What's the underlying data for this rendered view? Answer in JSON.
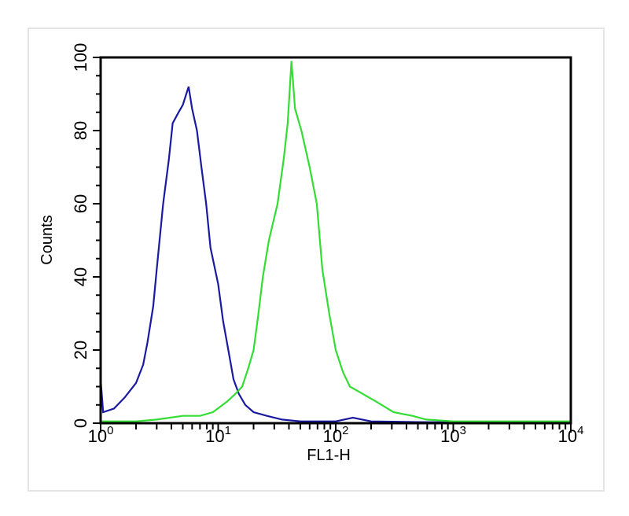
{
  "chart_data": {
    "type": "line",
    "title": "",
    "xlabel": "FL1-H",
    "ylabel": "Counts",
    "xscale": "log",
    "xlim": [
      1,
      10000
    ],
    "ylim": [
      0,
      100
    ],
    "grid": false,
    "x_tick_labels": [
      {
        "base": "10",
        "exp": "0"
      },
      {
        "base": "10",
        "exp": "1"
      },
      {
        "base": "10",
        "exp": "2"
      },
      {
        "base": "10",
        "exp": "3"
      },
      {
        "base": "10",
        "exp": "4"
      }
    ],
    "y_tick_labels": [
      "0",
      "20",
      "40",
      "60",
      "80",
      "100"
    ],
    "series": [
      {
        "color": "#1a1aa0",
        "points": [
          [
            1,
            12
          ],
          [
            1.05,
            3
          ],
          [
            1.3,
            4
          ],
          [
            1.6,
            7
          ],
          [
            2.0,
            11
          ],
          [
            2.3,
            16
          ],
          [
            2.5,
            22
          ],
          [
            2.8,
            32
          ],
          [
            3.0,
            42
          ],
          [
            3.4,
            60
          ],
          [
            3.8,
            72
          ],
          [
            4.1,
            82
          ],
          [
            4.6,
            85
          ],
          [
            5.0,
            87
          ],
          [
            5.6,
            92
          ],
          [
            6.0,
            86
          ],
          [
            6.6,
            80
          ],
          [
            7.2,
            70
          ],
          [
            7.9,
            60
          ],
          [
            8.6,
            48
          ],
          [
            10,
            38
          ],
          [
            11,
            28
          ],
          [
            12.2,
            20
          ],
          [
            13.5,
            12
          ],
          [
            15,
            8
          ],
          [
            17,
            5
          ],
          [
            20,
            3
          ],
          [
            26,
            2
          ],
          [
            35,
            1
          ],
          [
            50,
            0.5
          ],
          [
            100,
            0.5
          ],
          [
            140,
            1.5
          ],
          [
            200,
            0.5
          ],
          [
            500,
            0.3
          ],
          [
            10000,
            0
          ]
        ]
      },
      {
        "color": "#33dd33",
        "points": [
          [
            1,
            0.5
          ],
          [
            2,
            0.5
          ],
          [
            3,
            1
          ],
          [
            5,
            2
          ],
          [
            7,
            2
          ],
          [
            9,
            3
          ],
          [
            12,
            6
          ],
          [
            14,
            8
          ],
          [
            16,
            10
          ],
          [
            18,
            15
          ],
          [
            20,
            20
          ],
          [
            22,
            30
          ],
          [
            24,
            40
          ],
          [
            27,
            50
          ],
          [
            32,
            60
          ],
          [
            36,
            72
          ],
          [
            39,
            82
          ],
          [
            42,
            99
          ],
          [
            45,
            86
          ],
          [
            51,
            80
          ],
          [
            60,
            70
          ],
          [
            69,
            60
          ],
          [
            77,
            42
          ],
          [
            88,
            30
          ],
          [
            100,
            20
          ],
          [
            115,
            14
          ],
          [
            132,
            10
          ],
          [
            170,
            8
          ],
          [
            218,
            6
          ],
          [
            310,
            3
          ],
          [
            450,
            2
          ],
          [
            590,
            1
          ],
          [
            1000,
            0.5
          ],
          [
            10000,
            0.5
          ]
        ]
      }
    ]
  }
}
